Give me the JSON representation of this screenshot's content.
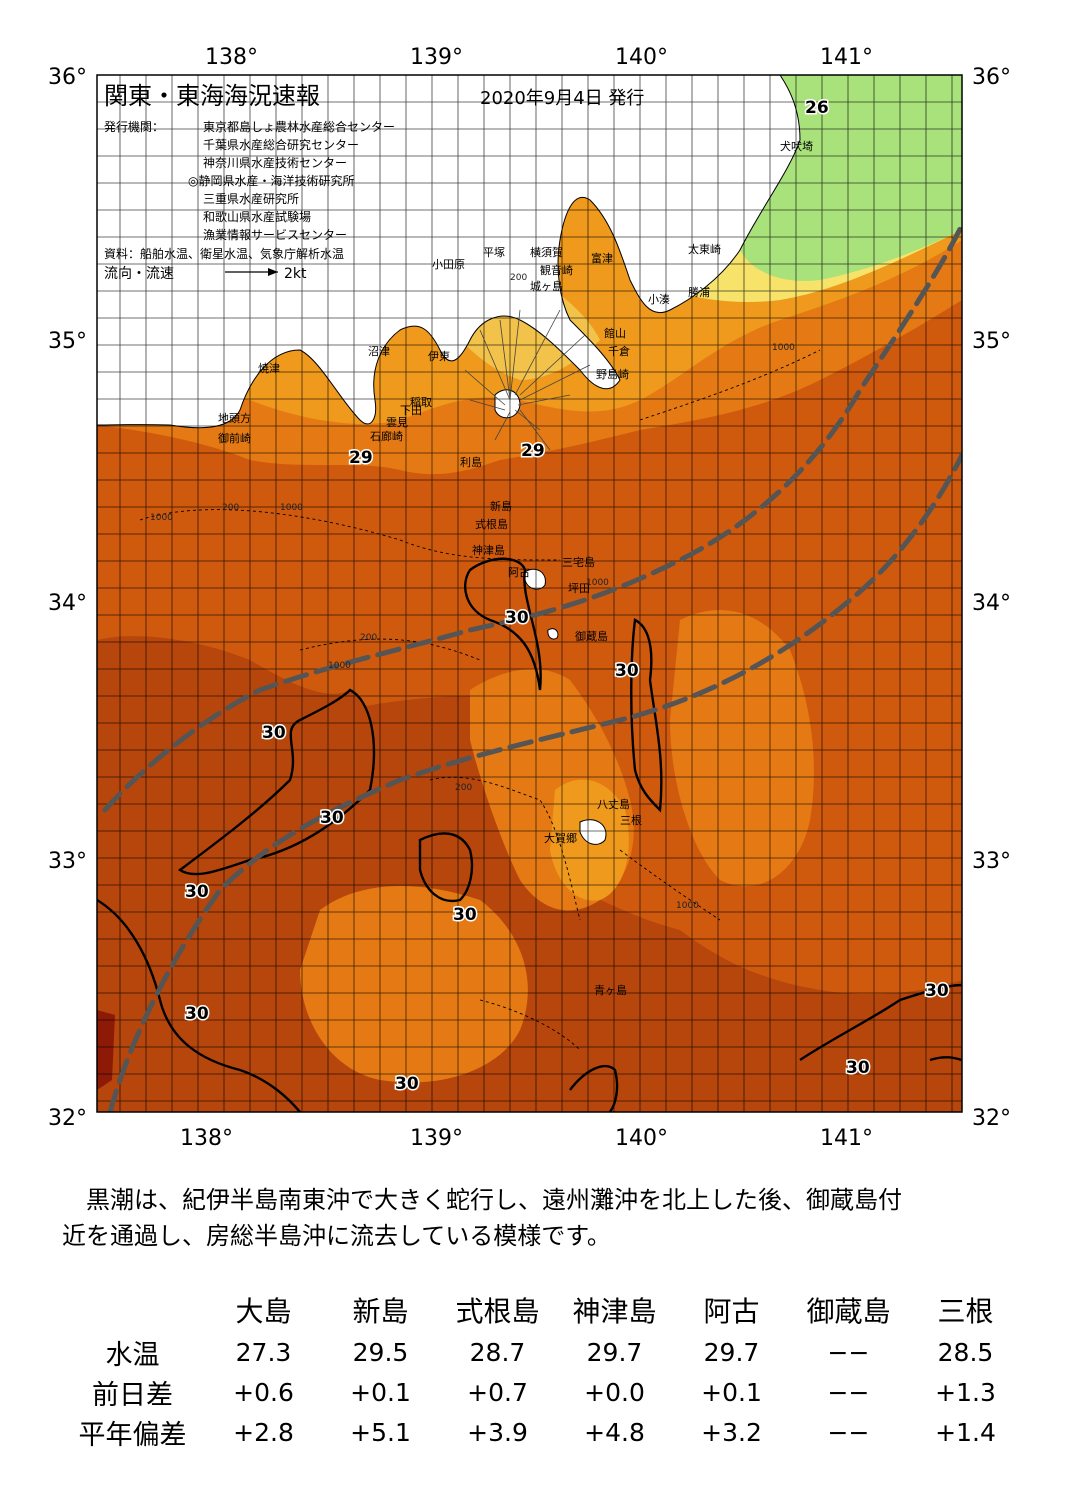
{
  "map": {
    "title": "関東・東海海況速報",
    "issue_date": "2020年9月4日 発行",
    "publisher_label": "発行機関：",
    "publishers": [
      "東京都島しょ農林水産総合センター",
      "千葉県水産総合研究センター",
      "神奈川県水産技術センター",
      "◎静岡県水産・海洋技術研究所",
      "三重県水産研究所",
      "和歌山県水産試験場",
      "漁業情報サービスセンター"
    ],
    "sources": "資料：船舶水温、衛星水温、気象庁解析水温",
    "flow_legend": "流向・流速",
    "flow_scale": "2kt",
    "lon_labels": [
      "138°",
      "139°",
      "140°",
      "141°"
    ],
    "lat_labels": [
      "36°",
      "35°",
      "34°",
      "33°",
      "32°"
    ],
    "place_labels": [
      "犬吠埼",
      "太東崎",
      "勝浦",
      "小湊",
      "館山",
      "千倉",
      "野島崎",
      "富津",
      "観音崎",
      "横須賀",
      "平塚",
      "小田原",
      "城ヶ島",
      "沼津",
      "伊東",
      "焼津",
      "地頭方",
      "御前崎",
      "稲取",
      "雲見",
      "下田",
      "石廊崎",
      "利島",
      "新島",
      "式根島",
      "神津島",
      "三宅島",
      "阿古",
      "坪田",
      "御蔵島",
      "八丈島",
      "三根",
      "大賀郷",
      "青ヶ島"
    ],
    "contour_labels": [
      "26",
      "29",
      "29",
      "30",
      "30",
      "30",
      "30",
      "30",
      "30",
      "30",
      "30",
      "30",
      "30"
    ],
    "depth_labels": [
      "200",
      "1000",
      "1000",
      "200",
      "1000",
      "1000",
      "200",
      "1000",
      "1000",
      "200"
    ],
    "colors": {
      "sea_26": "#f7e36a",
      "sea_27": "#f2c24a",
      "sea_28": "#ef9a1c",
      "sea_28_5": "#e57a14",
      "sea_29": "#d9650f",
      "sea_29_5": "#c9550d",
      "sea_30": "#b7460c",
      "sea_31": "#8c1a06",
      "cold_green": "#a9e27a",
      "kuroshio_path": "#555555"
    }
  },
  "summary": {
    "line1": "　黒潮は、紀伊半島南東沖で大きく蛇行し、遠州灘沖を北上した後、御蔵島付",
    "line2": "近を通過し、房総半島沖に流去している模様です。"
  },
  "table": {
    "headers": [
      "大島",
      "新島",
      "式根島",
      "神津島",
      "阿古",
      "御蔵島",
      "三根"
    ],
    "rows": [
      {
        "label": "水温",
        "values": [
          "27.3",
          "29.5",
          "28.7",
          "29.7",
          "29.7",
          "−−",
          "28.5"
        ]
      },
      {
        "label": "前日差",
        "values": [
          "+0.6",
          "+0.1",
          "+0.7",
          "+0.0",
          "+0.1",
          "−−",
          "+1.3"
        ]
      },
      {
        "label": "平年偏差",
        "values": [
          "+2.8",
          "+5.1",
          "+3.9",
          "+4.8",
          "+3.2",
          "−−",
          "+1.4"
        ]
      }
    ]
  }
}
